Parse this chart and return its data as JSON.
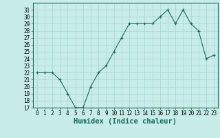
{
  "x": [
    0,
    1,
    2,
    3,
    4,
    5,
    6,
    7,
    8,
    9,
    10,
    11,
    12,
    13,
    14,
    15,
    16,
    17,
    18,
    19,
    20,
    21,
    22,
    23
  ],
  "y": [
    22,
    22,
    22,
    21,
    19,
    17,
    17,
    20,
    22,
    23,
    25,
    27,
    29,
    29,
    29,
    29,
    30,
    31,
    29,
    31,
    29,
    28,
    24,
    24.5
  ],
  "xlabel": "Humidex (Indice chaleur)",
  "ylim": [
    17,
    32
  ],
  "xlim": [
    -0.5,
    23.5
  ],
  "yticks": [
    17,
    18,
    19,
    20,
    21,
    22,
    23,
    24,
    25,
    26,
    27,
    28,
    29,
    30,
    31
  ],
  "xticks": [
    0,
    1,
    2,
    3,
    4,
    5,
    6,
    7,
    8,
    9,
    10,
    11,
    12,
    13,
    14,
    15,
    16,
    17,
    18,
    19,
    20,
    21,
    22,
    23
  ],
  "line_color": "#1a6b5a",
  "marker": "+",
  "bg_color": "#c8ece8",
  "grid_color": "#a8d4d0",
  "tick_label_fontsize": 5.5,
  "xlabel_fontsize": 7.5
}
